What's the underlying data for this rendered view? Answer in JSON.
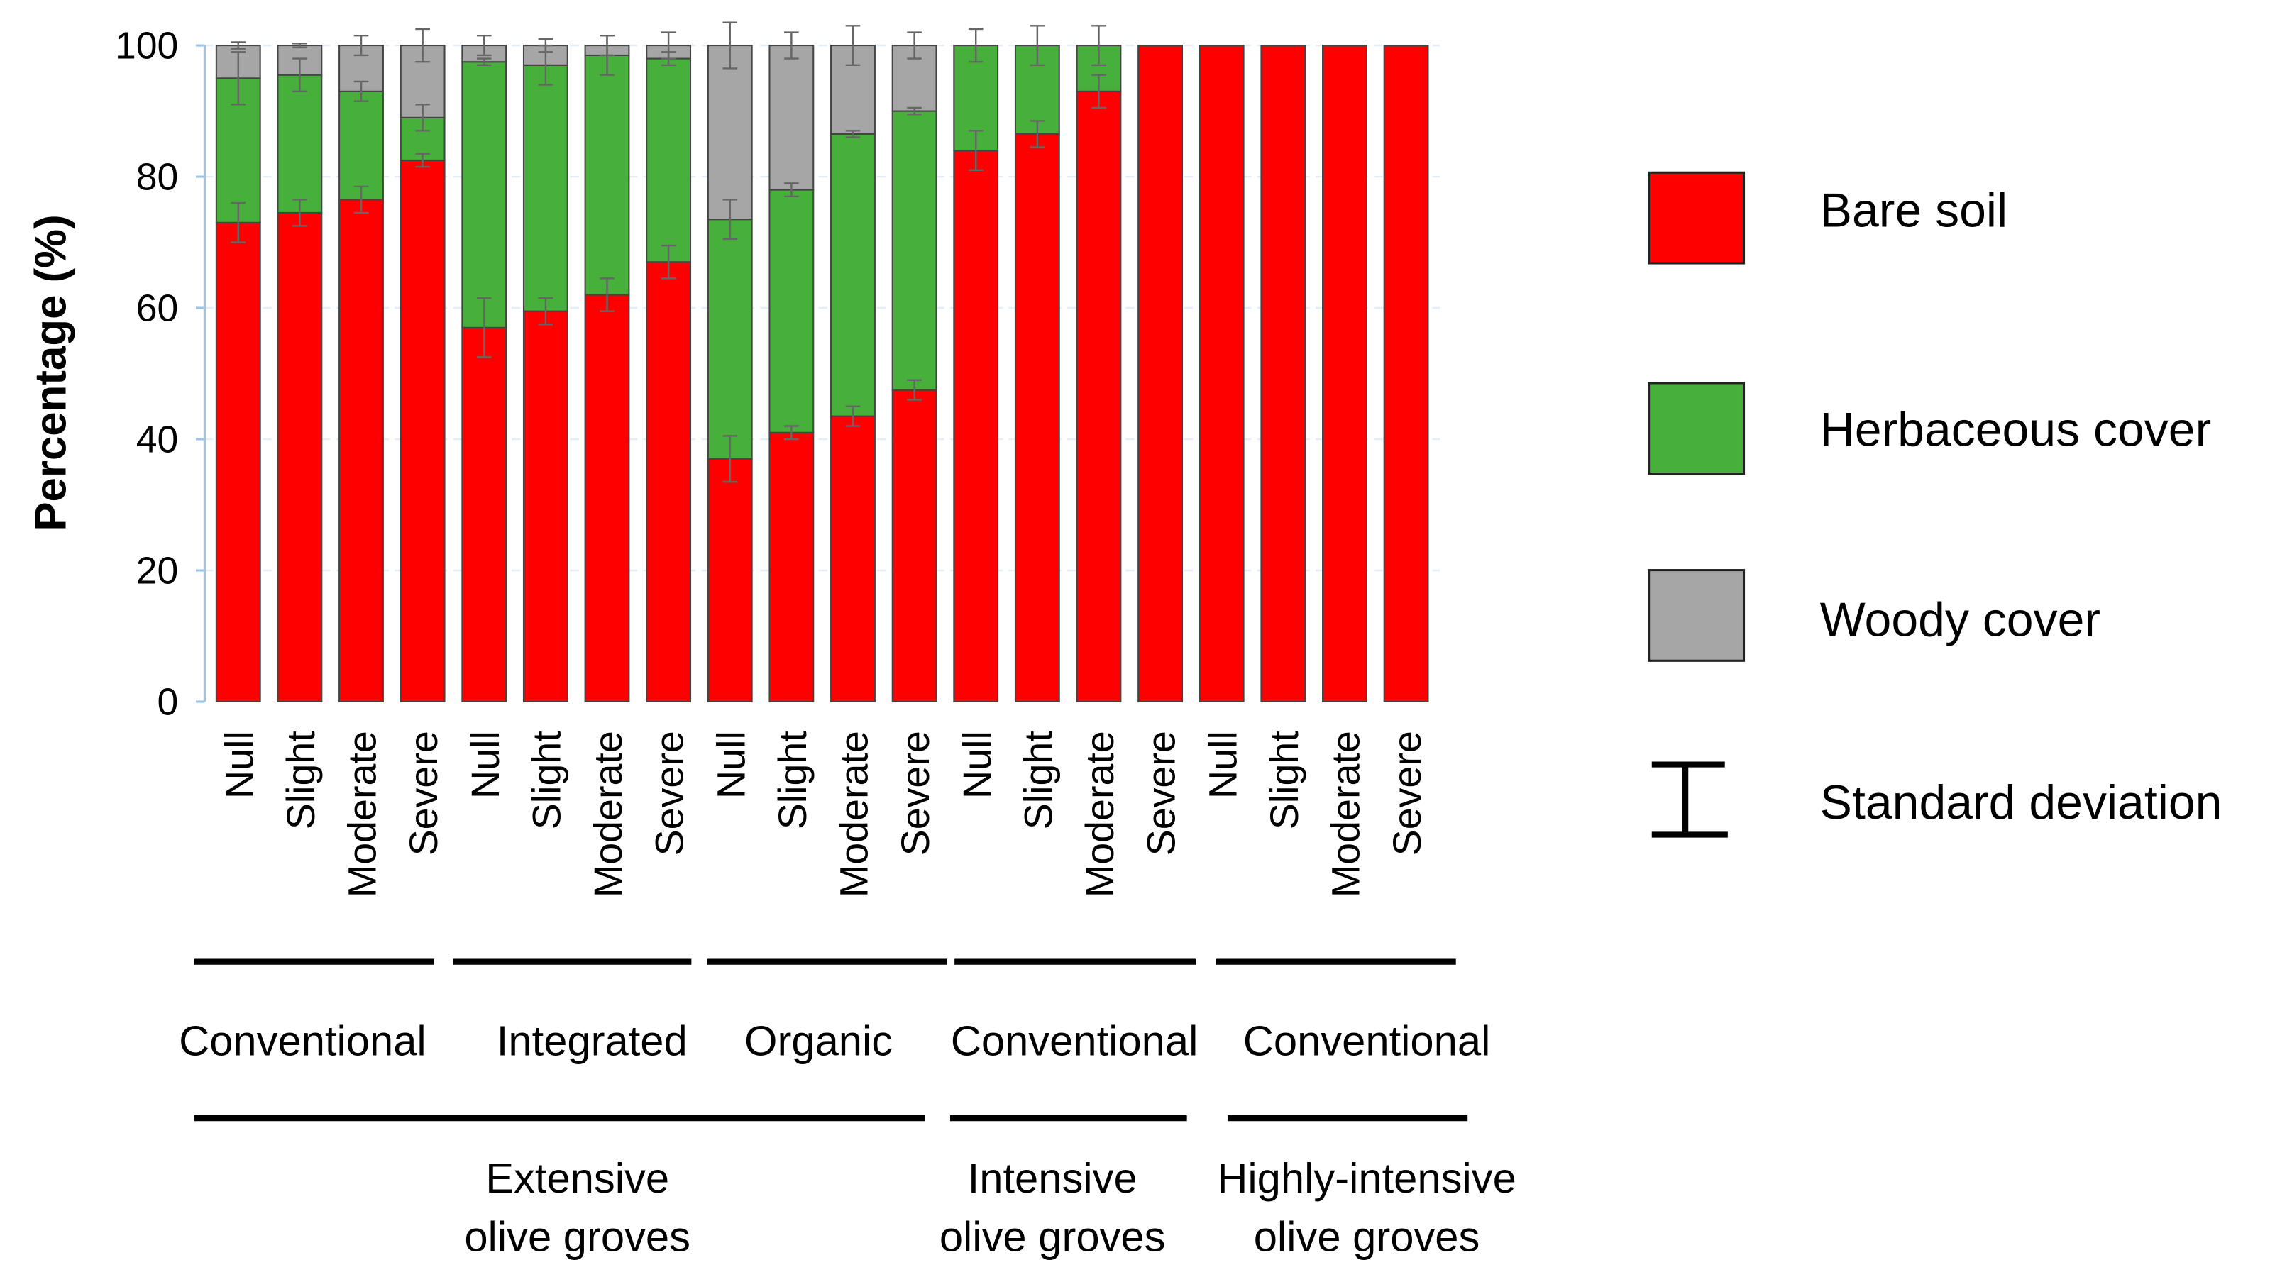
{
  "chart_data": {
    "type": "bar",
    "stacked": true,
    "title": "",
    "xlabel": "",
    "ylabel": "Percentage (%)",
    "ylim": [
      0,
      100
    ],
    "yticks": [
      "0",
      "20",
      "40",
      "60",
      "80",
      "100"
    ],
    "grid": true,
    "legend_position": "right",
    "categories": [
      "Null",
      "Slight",
      "Moderate",
      "Severe",
      "Null",
      "Slight",
      "Moderate",
      "Severe",
      "Null",
      "Slight",
      "Moderate",
      "Severe",
      "Null",
      "Slight",
      "Moderate",
      "Severe",
      "Null",
      "Slight",
      "Moderate",
      "Severe"
    ],
    "series": [
      {
        "name": "Bare soil",
        "color": "#ff0000",
        "values": [
          73,
          74.5,
          76.5,
          82.5,
          57,
          59.5,
          62,
          67,
          37,
          41,
          43.5,
          47.5,
          84,
          86.5,
          93,
          100,
          100,
          100,
          100,
          100
        ],
        "sd": [
          3,
          2,
          2,
          1,
          4.5,
          2,
          2.5,
          2.5,
          3.5,
          1,
          1.5,
          1.5,
          3,
          2,
          2.5,
          0,
          0,
          0,
          0,
          0
        ]
      },
      {
        "name": "Herbaceous cover",
        "color": "#46b03a",
        "values": [
          22,
          21,
          16.5,
          6.5,
          40.5,
          37.5,
          36.5,
          31,
          36.5,
          37,
          43,
          42.5,
          16,
          13.5,
          7,
          0,
          0,
          0,
          0,
          0
        ],
        "sd": [
          4,
          2.5,
          1.5,
          2,
          0.5,
          3,
          3,
          1,
          3,
          1,
          0.5,
          0.5,
          2.5,
          3,
          3,
          0,
          0,
          0,
          0,
          0
        ]
      },
      {
        "name": "Woody cover",
        "color": "#a6a6a6",
        "values": [
          5,
          4.5,
          7,
          11,
          2.5,
          3,
          1.5,
          2,
          26.5,
          22,
          13.5,
          10,
          0,
          0,
          0,
          0,
          0,
          0,
          0,
          0
        ],
        "sd": [
          0.5,
          0.3,
          1.5,
          2.5,
          1.5,
          1,
          1.5,
          2,
          3.5,
          2,
          3,
          2,
          0,
          0,
          0,
          0,
          0,
          0,
          0,
          0
        ]
      }
    ],
    "error_bar_label": "Standard deviation",
    "groups_level1": [
      "Conventional",
      "Integrated",
      "Organic",
      "Conventional",
      "Conventional"
    ],
    "groups_level2": [
      {
        "lines": [
          "Extensive",
          "olive groves"
        ]
      },
      {
        "lines": [
          "Intensive",
          "olive groves"
        ]
      },
      {
        "lines": [
          "Highly-intensive",
          "olive groves"
        ]
      }
    ]
  }
}
